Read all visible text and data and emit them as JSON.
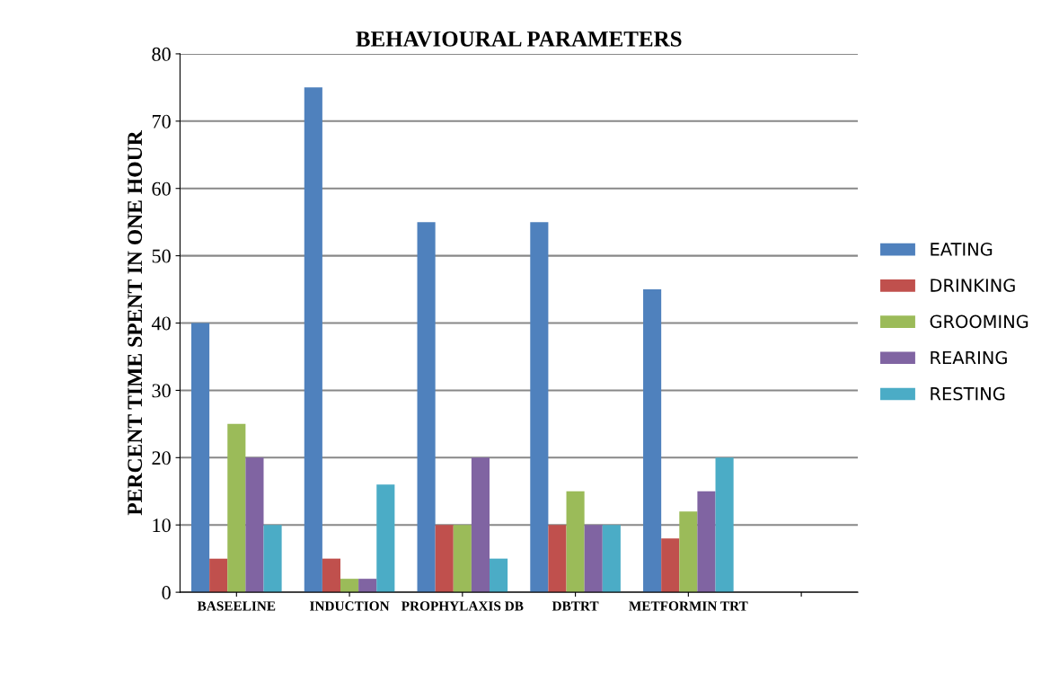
{
  "chart_data": {
    "type": "bar",
    "title": "BEHAVIOURAL PARAMETERS",
    "ylabel": "PERCENT TIME SPENT IN ONE HOUR",
    "categories": [
      "BASEELINE",
      "INDUCTION",
      "PROPHYLAXIS DB",
      "DBTRT",
      "METFORMIN TRT",
      null
    ],
    "series": [
      {
        "name": "EATING",
        "color": "#4f81bd",
        "values": [
          40,
          75,
          55,
          55,
          45,
          null
        ]
      },
      {
        "name": "DRINKING",
        "color": "#c0504d",
        "values": [
          5,
          5,
          10,
          10,
          8,
          null
        ]
      },
      {
        "name": "GROOMING",
        "color": "#9bbb59",
        "values": [
          25,
          2,
          10,
          15,
          12,
          null
        ]
      },
      {
        "name": "REARING",
        "color": "#8064a2",
        "values": [
          20,
          2,
          20,
          10,
          15,
          null
        ]
      },
      {
        "name": "RESTING",
        "color": "#4bacc6",
        "values": [
          10,
          16,
          5,
          10,
          20,
          null
        ]
      }
    ],
    "ylim": [
      0,
      80
    ],
    "yticks": [
      0,
      10,
      20,
      30,
      40,
      50,
      60,
      70,
      80
    ],
    "grid": "y",
    "legend": "right"
  }
}
